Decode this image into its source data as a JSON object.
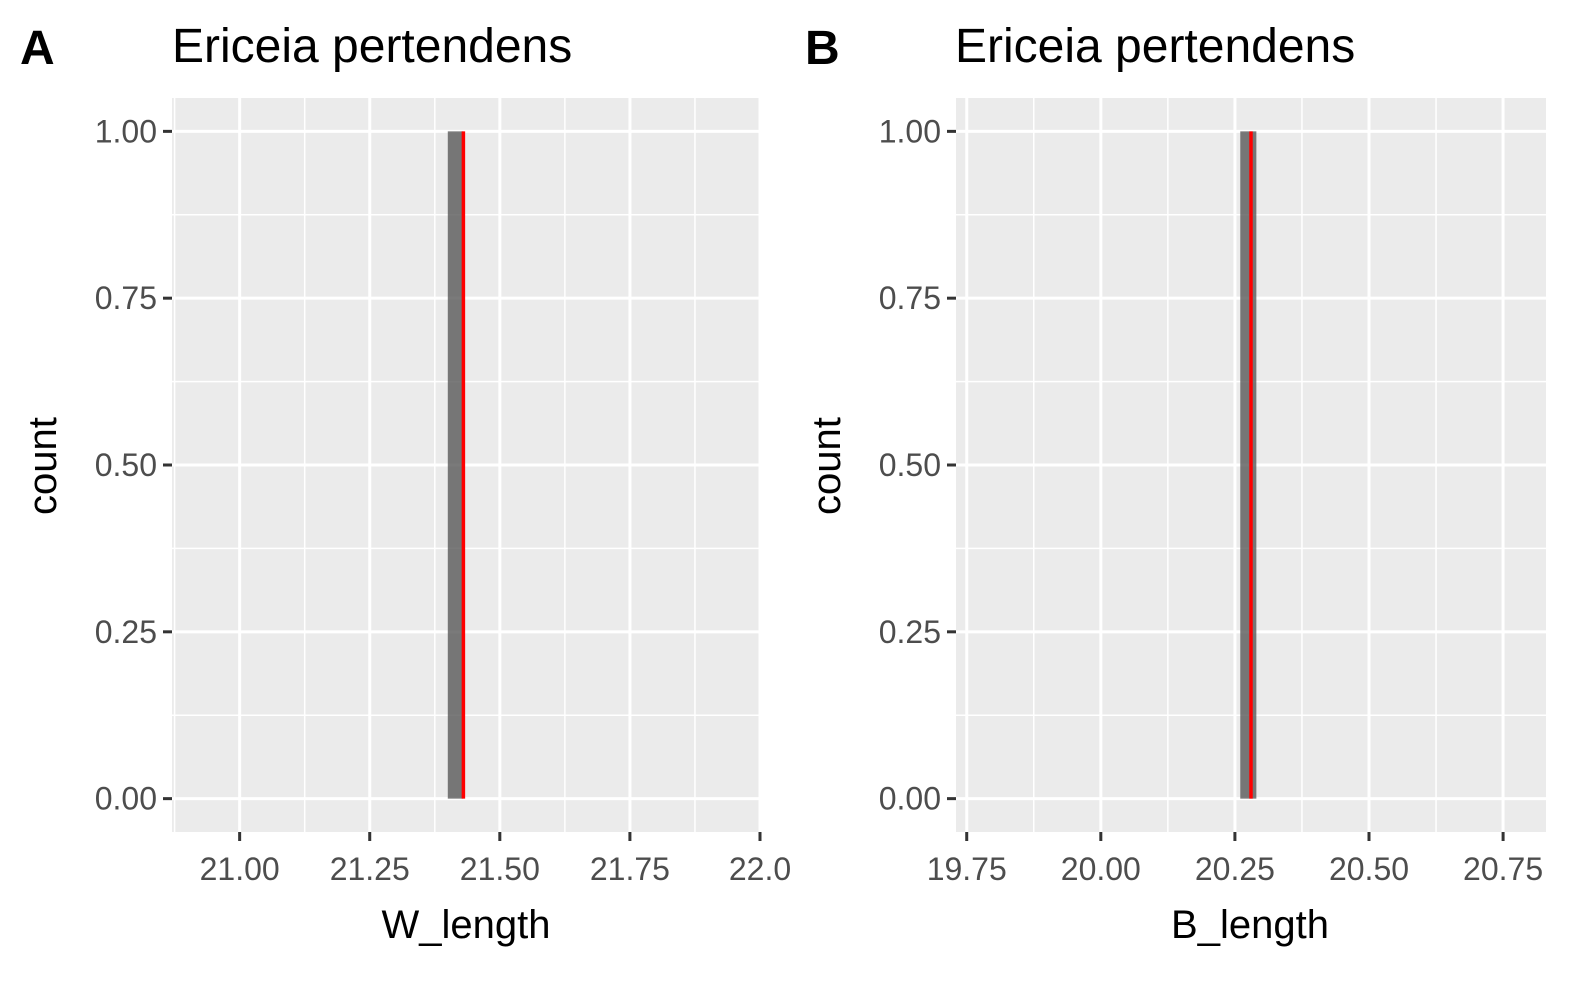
{
  "colors": {
    "panel_background": "#ebebeb",
    "grid": "#ffffff",
    "bar_fill": "#595959",
    "bar_alpha": 0.8,
    "vline": "#ff0000",
    "tick_mark": "#333333",
    "tick_label": "#4d4d4d",
    "text": "#000000"
  },
  "chart_data": [
    {
      "type": "bar",
      "panel_tag": "A",
      "title": "Ericeia pertendens",
      "xlabel": "W_length",
      "ylabel": "count",
      "xlim": [
        20.87,
        22.0
      ],
      "ylim": [
        -0.05,
        1.05
      ],
      "x_ticks": [
        21.0,
        21.25,
        21.5,
        21.75,
        22.0
      ],
      "x_tick_labels": [
        "21.00",
        "21.25",
        "21.50",
        "21.75",
        "22.0"
      ],
      "y_ticks": [
        0,
        0.25,
        0.5,
        0.75,
        1.0
      ],
      "y_tick_labels": [
        "0.00",
        "0.25",
        "0.50",
        "0.75",
        "1.00"
      ],
      "bars": [
        {
          "x_start": 21.4,
          "x_end": 21.43,
          "count": 1
        }
      ],
      "vline_x": 21.43,
      "grid": true
    },
    {
      "type": "bar",
      "panel_tag": "B",
      "title": "Ericeia pertendens",
      "xlabel": "B_length",
      "ylabel": "count",
      "xlim": [
        19.73,
        20.83
      ],
      "ylim": [
        -0.05,
        1.05
      ],
      "x_ticks": [
        19.75,
        20.0,
        20.25,
        20.5,
        20.75
      ],
      "x_tick_labels": [
        "19.75",
        "20.00",
        "20.25",
        "20.50",
        "20.75"
      ],
      "y_ticks": [
        0,
        0.25,
        0.5,
        0.75,
        1.0
      ],
      "y_tick_labels": [
        "0.00",
        "0.25",
        "0.50",
        "0.75",
        "1.00"
      ],
      "bars": [
        {
          "x_start": 20.26,
          "x_end": 20.29,
          "count": 1
        }
      ],
      "vline_x": 20.28,
      "grid": true
    }
  ]
}
